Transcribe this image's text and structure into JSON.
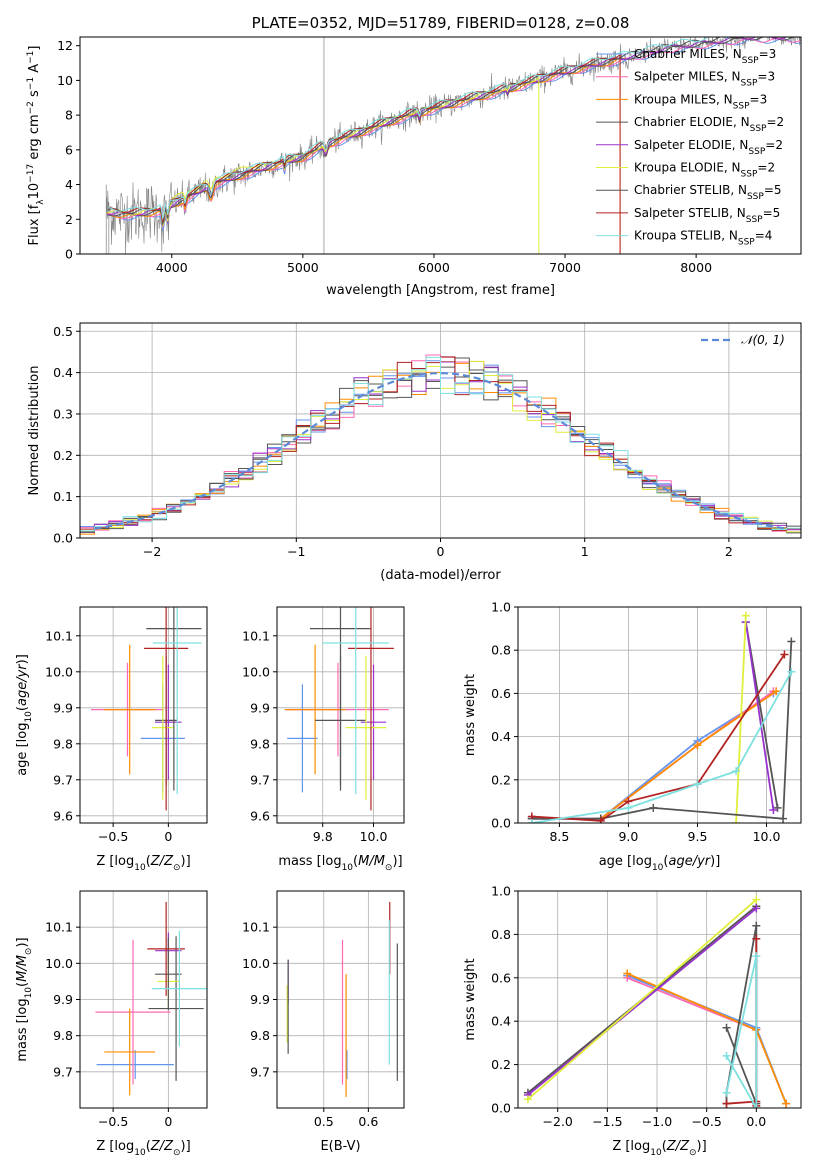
{
  "palette": {
    "Chabrier MILES": "#6495ed",
    "Salpeter MILES": "#ff69b4",
    "Kroupa MILES": "#ff8c00",
    "Chabrier ELODIE": "#555555",
    "Salpeter ELODIE": "#9932cc",
    "Kroupa ELODIE": "#e0ee3c",
    "Chabrier STELIB": "#555555",
    "Salpeter STELIB": "#b22222",
    "Kroupa STELIB": "#7fe0e0"
  },
  "chart_data": [
    {
      "id": "spectrum",
      "type": "line",
      "title": "PLATE=0352, MJD=51789, FIBERID=0128, z=0.08",
      "xlabel": "wavelength [Angstrom, rest frame]",
      "ylabel": "Flux [fλ10⁻¹⁷ erg cm⁻² s⁻¹ A⁻¹]",
      "xlim": [
        3300,
        8800
      ],
      "ylim": [
        0,
        12.5
      ],
      "xticks": [
        4000,
        5000,
        6000,
        7000,
        8000
      ],
      "yticks": [
        0,
        2,
        4,
        6,
        8,
        10,
        12
      ],
      "grid": false,
      "legend_position": "lower-right",
      "data_trend": {
        "x": [
          3500,
          3700,
          3900,
          4100,
          4300,
          4500,
          4800,
          5000,
          5200,
          5500,
          5800,
          6000,
          6300,
          6600,
          6900,
          7200,
          7500,
          7800,
          8100,
          8400
        ],
        "y": [
          2.4,
          2.3,
          2.5,
          3.2,
          4.0,
          4.5,
          5.2,
          5.6,
          6.4,
          7.2,
          8.0,
          8.4,
          9.0,
          9.6,
          10.3,
          10.9,
          11.4,
          11.9,
          12.2,
          12.5
        ]
      },
      "series": [
        {
          "name": "Chabrier MILES, N_SSP=3",
          "label_main": "Chabrier MILES, N",
          "label_sub": "SSP",
          "label_tail": "=3",
          "color": "#6495ed"
        },
        {
          "name": "Salpeter MILES, N_SSP=3",
          "label_main": "Salpeter MILES, N",
          "label_sub": "SSP",
          "label_tail": "=3",
          "color": "#ff69b4"
        },
        {
          "name": "Kroupa MILES, N_SSP=3",
          "label_main": "Kroupa MILES, N",
          "label_sub": "SSP",
          "label_tail": "=3",
          "color": "#ff8c00"
        },
        {
          "name": "Chabrier ELODIE, N_SSP=2",
          "label_main": "Chabrier ELODIE, N",
          "label_sub": "SSP",
          "label_tail": "=2",
          "color": "#555555"
        },
        {
          "name": "Salpeter ELODIE, N_SSP=2",
          "label_main": "Salpeter ELODIE, N",
          "label_sub": "SSP",
          "label_tail": "=2",
          "color": "#9932cc"
        },
        {
          "name": "Kroupa ELODIE, N_SSP=2",
          "label_main": "Kroupa ELODIE, N",
          "label_sub": "SSP",
          "label_tail": "=2",
          "color": "#e0ee3c"
        },
        {
          "name": "Chabrier STELIB, N_SSP=5",
          "label_main": "Chabrier STELIB, N",
          "label_sub": "SSP",
          "label_tail": "=5",
          "color": "#555555"
        },
        {
          "name": "Salpeter STELIB, N_SSP=5",
          "label_main": "Salpeter STELIB, N",
          "label_sub": "SSP",
          "label_tail": "=5",
          "color": "#b22222"
        },
        {
          "name": "Kroupa STELIB, N_SSP=4",
          "label_main": "Kroupa STELIB, N",
          "label_sub": "SSP",
          "label_tail": "=4",
          "color": "#7fe0e0"
        }
      ]
    },
    {
      "id": "residuals",
      "type": "step-histogram",
      "xlabel": "(data-model)/error",
      "ylabel": "Normed distribution",
      "xlim": [
        -2.5,
        2.5
      ],
      "ylim": [
        0,
        0.52
      ],
      "xticks": [
        -2,
        -1,
        0,
        1,
        2
      ],
      "yticks": [
        0.0,
        0.1,
        0.2,
        0.3,
        0.4,
        0.5
      ],
      "grid": true,
      "legend_position": "upper-right",
      "legend_label": "𝒩(0, 1)",
      "bins": [
        -2.5,
        2.5,
        50
      ],
      "series_color_order": [
        "#6495ed",
        "#ff69b4",
        "#ff8c00",
        "#555555",
        "#9932cc",
        "#e0ee3c",
        "#555555",
        "#b22222",
        "#7fe0e0"
      ]
    },
    {
      "id": "age-vs-Z",
      "type": "errorbar",
      "xlabel": "Z [log10(Z/Z⊙)]",
      "ylabel": "age  [log10(age/yr)]",
      "xlim": [
        -0.8,
        0.35
      ],
      "ylim": [
        9.58,
        10.18
      ],
      "xticks": [
        -0.5,
        0.0
      ],
      "yticks": [
        9.6,
        9.7,
        9.8,
        9.9,
        10.0,
        10.1
      ],
      "grid": true,
      "points": [
        {
          "x": -0.05,
          "y": 9.815,
          "xerr": 0.2,
          "yerr": 0.15,
          "color": "#6495ed"
        },
        {
          "x": -0.37,
          "y": 9.895,
          "xerr": 0.33,
          "yerr": 0.13,
          "color": "#ff69b4"
        },
        {
          "x": -0.35,
          "y": 9.895,
          "xerr": 0.23,
          "yerr": 0.18,
          "color": "#ff8c00"
        },
        {
          "x": -0.02,
          "y": 9.865,
          "xerr": 0.1,
          "yerr": 0.18,
          "color": "#555555"
        },
        {
          "x": 0.0,
          "y": 9.86,
          "xerr": 0.12,
          "yerr": 0.16,
          "color": "#9932cc"
        },
        {
          "x": -0.05,
          "y": 9.845,
          "xerr": 0.1,
          "yerr": 0.2,
          "color": "#e0ee3c"
        },
        {
          "x": 0.05,
          "y": 10.12,
          "xerr": 0.25,
          "yerr": 0.45,
          "color": "#555555"
        },
        {
          "x": -0.02,
          "y": 10.065,
          "xerr": 0.2,
          "yerr": 0.45,
          "color": "#b22222"
        },
        {
          "x": 0.08,
          "y": 10.08,
          "xerr": 0.22,
          "yerr": 0.42,
          "color": "#7fe0e0"
        }
      ]
    },
    {
      "id": "age-vs-mass",
      "type": "errorbar",
      "xlabel": "mass [log10(M/M⊙)]",
      "ylabel": "",
      "xlim": [
        9.62,
        10.12
      ],
      "ylim": [
        9.58,
        10.18
      ],
      "xticks": [
        9.8,
        10.0
      ],
      "yticks": [
        9.6,
        9.7,
        9.8,
        9.9,
        10.0,
        10.1
      ],
      "grid": true,
      "points": [
        {
          "x": 9.72,
          "y": 9.815,
          "xerr": 0.06,
          "yerr": 0.15,
          "color": "#6495ed"
        },
        {
          "x": 9.86,
          "y": 9.895,
          "xerr": 0.2,
          "yerr": 0.13,
          "color": "#ff69b4"
        },
        {
          "x": 9.77,
          "y": 9.895,
          "xerr": 0.12,
          "yerr": 0.18,
          "color": "#ff8c00"
        },
        {
          "x": 9.87,
          "y": 9.865,
          "xerr": 0.1,
          "yerr": 0.18,
          "color": "#555555"
        },
        {
          "x": 10.0,
          "y": 9.86,
          "xerr": 0.05,
          "yerr": 0.16,
          "color": "#9932cc"
        },
        {
          "x": 9.97,
          "y": 9.845,
          "xerr": 0.08,
          "yerr": 0.2,
          "color": "#e0ee3c"
        },
        {
          "x": 9.87,
          "y": 10.12,
          "xerr": 0.12,
          "yerr": 0.45,
          "color": "#555555"
        },
        {
          "x": 9.99,
          "y": 10.065,
          "xerr": 0.09,
          "yerr": 0.45,
          "color": "#b22222"
        },
        {
          "x": 9.93,
          "y": 10.08,
          "xerr": 0.13,
          "yerr": 0.42,
          "color": "#7fe0e0"
        }
      ]
    },
    {
      "id": "massweight-vs-age",
      "type": "line",
      "xlabel": "age  [log10(age/yr)]",
      "ylabel": "mass weight",
      "xlim": [
        8.2,
        10.25
      ],
      "ylim": [
        0,
        1
      ],
      "xticks": [
        8.5,
        9.0,
        9.5,
        10.0
      ],
      "yticks": [
        0.0,
        0.2,
        0.4,
        0.6,
        0.8,
        1.0
      ],
      "grid": true,
      "series": [
        {
          "color": "#6495ed",
          "x": [
            8.3,
            8.8,
            9.5,
            10.05
          ],
          "y": [
            0.02,
            0.02,
            0.38,
            0.6
          ]
        },
        {
          "color": "#ff69b4",
          "x": [
            8.3,
            8.8,
            9.5,
            10.05
          ],
          "y": [
            0.02,
            0.02,
            0.36,
            0.61
          ]
        },
        {
          "color": "#ff8c00",
          "x": [
            8.8,
            9.5,
            10.07
          ],
          "y": [
            0.02,
            0.36,
            0.61
          ]
        },
        {
          "color": "#555555",
          "x": [
            9.85,
            10.08
          ],
          "y": [
            0.93,
            0.07
          ]
        },
        {
          "color": "#9932cc",
          "x": [
            9.85,
            10.05
          ],
          "y": [
            0.93,
            0.06
          ]
        },
        {
          "color": "#e0ee3c",
          "x": [
            9.78,
            9.85
          ],
          "y": [
            0.0,
            0.96
          ]
        },
        {
          "color": "#555555",
          "x": [
            8.3,
            8.8,
            9.18,
            10.12,
            10.18
          ],
          "y": [
            0.02,
            0.02,
            0.07,
            0.02,
            0.84
          ]
        },
        {
          "color": "#b22222",
          "x": [
            8.3,
            8.8,
            9.0,
            9.5,
            10.13
          ],
          "y": [
            0.03,
            0.01,
            0.1,
            0.18,
            0.78
          ]
        },
        {
          "color": "#7fe0e0",
          "x": [
            8.3,
            9.0,
            9.5,
            9.78,
            10.18
          ],
          "y": [
            0.0,
            0.07,
            0.18,
            0.24,
            0.7
          ]
        }
      ]
    },
    {
      "id": "mass-vs-Z",
      "type": "errorbar",
      "xlabel": "Z [log10(Z/Z⊙)]",
      "ylabel": "mass [log10(M/M⊙)]",
      "xlim": [
        -0.8,
        0.35
      ],
      "ylim": [
        9.6,
        10.2
      ],
      "xticks": [
        -0.5,
        0.0
      ],
      "yticks": [
        9.7,
        9.8,
        9.9,
        10.0,
        10.1
      ],
      "grid": true,
      "points": [
        {
          "x": -0.3,
          "y": 9.72,
          "xerr": 0.35,
          "yerr": 0.04,
          "color": "#6495ed"
        },
        {
          "x": -0.32,
          "y": 9.865,
          "xerr": 0.34,
          "yerr": 0.2,
          "color": "#ff69b4"
        },
        {
          "x": -0.35,
          "y": 9.755,
          "xerr": 0.23,
          "yerr": 0.12,
          "color": "#ff8c00"
        },
        {
          "x": 0.07,
          "y": 9.875,
          "xerr": 0.25,
          "yerr": 0.2,
          "color": "#555555"
        },
        {
          "x": 0.0,
          "y": 10.035,
          "xerr": 0.12,
          "yerr": 0.05,
          "color": "#9932cc"
        },
        {
          "x": 0.0,
          "y": 9.95,
          "xerr": 0.1,
          "yerr": 0.07,
          "color": "#e0ee3c"
        },
        {
          "x": 0.0,
          "y": 9.97,
          "xerr": 0.12,
          "yerr": 0.1,
          "color": "#555555"
        },
        {
          "x": -0.02,
          "y": 10.04,
          "xerr": 0.17,
          "yerr": 0.13,
          "color": "#b22222"
        },
        {
          "x": 0.1,
          "y": 9.93,
          "xerr": 0.25,
          "yerr": 0.16,
          "color": "#7fe0e0"
        }
      ]
    },
    {
      "id": "mass-vs-ebv",
      "type": "errorbar",
      "xlabel": "E(B-V)",
      "ylabel": "",
      "xlim": [
        0.395,
        0.68
      ],
      "ylim": [
        9.6,
        10.2
      ],
      "xticks": [
        0.5,
        0.6
      ],
      "yticks": [
        9.7,
        9.8,
        9.9,
        10.0,
        10.1
      ],
      "grid": true,
      "points": [
        {
          "x": 0.552,
          "y": 9.72,
          "xerr": 0,
          "yerr": 0.04,
          "color": "#6495ed"
        },
        {
          "x": 0.542,
          "y": 9.865,
          "xerr": 0,
          "yerr": 0.2,
          "color": "#ff69b4"
        },
        {
          "x": 0.55,
          "y": 9.8,
          "xerr": 0,
          "yerr": 0.17,
          "color": "#ff8c00"
        },
        {
          "x": 0.665,
          "y": 9.865,
          "xerr": 0,
          "yerr": 0.19,
          "color": "#555555"
        },
        {
          "x": 0.42,
          "y": 9.95,
          "xerr": 0,
          "yerr": 0.06,
          "color": "#9932cc"
        },
        {
          "x": 0.418,
          "y": 9.86,
          "xerr": 0,
          "yerr": 0.08,
          "color": "#e0ee3c"
        },
        {
          "x": 0.42,
          "y": 9.88,
          "xerr": 0,
          "yerr": 0.13,
          "color": "#555555"
        },
        {
          "x": 0.648,
          "y": 10.07,
          "xerr": 0,
          "yerr": 0.1,
          "color": "#b22222"
        },
        {
          "x": 0.647,
          "y": 9.92,
          "xerr": 0,
          "yerr": 0.2,
          "color": "#7fe0e0"
        }
      ]
    },
    {
      "id": "massweight-vs-Z",
      "type": "line",
      "xlabel": "Z [log10(Z/Z⊙)]",
      "ylabel": "mass weight",
      "xlim": [
        -2.4,
        0.45
      ],
      "ylim": [
        0,
        1
      ],
      "xticks": [
        -2.0,
        -1.5,
        -1.0,
        -0.5,
        0.0
      ],
      "yticks": [
        0.0,
        0.2,
        0.4,
        0.6,
        0.8,
        1.0
      ],
      "grid": true,
      "series": [
        {
          "color": "#6495ed",
          "x": [
            -1.3,
            0.0,
            0.3
          ],
          "y": [
            0.61,
            0.37,
            0.02
          ]
        },
        {
          "color": "#ff69b4",
          "x": [
            -1.3,
            0.0
          ],
          "y": [
            0.6,
            0.36
          ]
        },
        {
          "color": "#ff8c00",
          "x": [
            -1.3,
            0.0,
            0.3
          ],
          "y": [
            0.62,
            0.36,
            0.02
          ]
        },
        {
          "color": "#555555",
          "x": [
            -2.3,
            0.0
          ],
          "y": [
            0.07,
            0.93
          ]
        },
        {
          "color": "#9932cc",
          "x": [
            -2.3,
            0.0
          ],
          "y": [
            0.06,
            0.92
          ]
        },
        {
          "color": "#e0ee3c",
          "x": [
            -2.3,
            0.0
          ],
          "y": [
            0.04,
            0.96
          ]
        },
        {
          "color": "#555555",
          "x": [
            -0.3,
            -0.3,
            0.0,
            0.0,
            -0.3
          ],
          "y": [
            0.02,
            0.07,
            0.84,
            0.02,
            0.37
          ]
        },
        {
          "color": "#b22222",
          "x": [
            -0.3,
            0.0,
            0.0,
            0.0
          ],
          "y": [
            0.02,
            0.03,
            0.78,
            0.01
          ]
        },
        {
          "color": "#7fe0e0",
          "x": [
            -0.3,
            0.0,
            0.0,
            -0.3
          ],
          "y": [
            0.24,
            0.0,
            0.7,
            0.07
          ]
        }
      ]
    }
  ],
  "panel_labels": {
    "spectrum_title": "PLATE=0352, MJD=51789, FIBERID=0128, z=0.08",
    "spectrum_xlabel": "wavelength [Angstrom, rest frame]",
    "hist_xlabel": "(data-model)/error",
    "hist_ylabel": "Normed distribution",
    "age_label_prefix": "age  [log",
    "age_label_suffix": "(age/yr)]",
    "mass_label_prefix": "mass [log",
    "mass_label_suffix": "(M/M⊙)]",
    "z_label_prefix": "Z [log",
    "z_label_suffix": "(Z/Z⊙)]",
    "ten_sub": "10",
    "ebv_label": "E(B-V)",
    "massweight_label": "mass weight",
    "flux_prefix": "Flux [f",
    "flux_lambda": "λ",
    "flux_mid": "10",
    "flux_exp17": "−17",
    "flux_erg": " erg cm",
    "flux_exp2": "−2",
    "flux_s": " s",
    "flux_exp1": "−1",
    "flux_A": " A",
    "flux_end": "]",
    "normal_label": "𝒩(0, 1)"
  }
}
